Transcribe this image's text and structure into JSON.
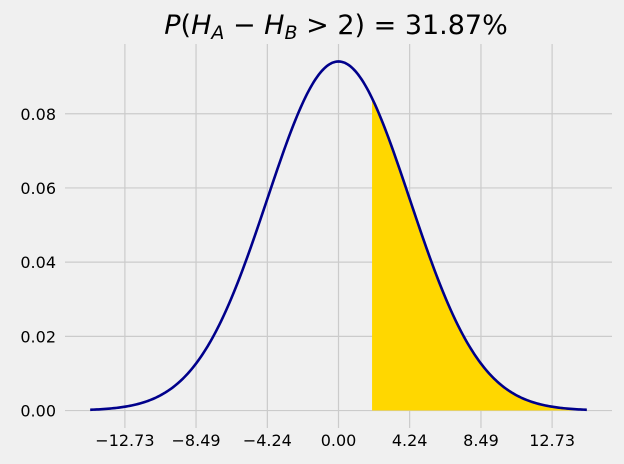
{
  "chart_data": {
    "type": "area",
    "title": {
      "P": "P",
      "open": "(",
      "H1": "H",
      "sub1": "A",
      "minus": " − ",
      "H2": "H",
      "sub2": "B",
      "rest": " > 2) = 31.87%"
    },
    "distribution": {
      "kind": "normal",
      "mean": 0,
      "sd": 4.24
    },
    "shade_from": 2,
    "shade_to": 14.8,
    "x_range": [
      -14.8,
      14.8
    ],
    "xlim": [
      -16.3,
      16.3
    ],
    "ylim": [
      -0.0047,
      0.0988
    ],
    "xticks": [
      -12.73,
      -8.49,
      -4.24,
      0.0,
      4.24,
      8.49,
      12.73
    ],
    "xtick_labels": [
      "−12.73",
      "−8.49",
      "−4.24",
      "0.00",
      "4.24",
      "8.49",
      "12.73"
    ],
    "yticks": [
      0.0,
      0.02,
      0.04,
      0.06,
      0.08
    ],
    "ytick_labels": [
      "0.00",
      "0.02",
      "0.04",
      "0.06",
      "0.08"
    ],
    "grid": true,
    "xlabel": "",
    "ylabel": "",
    "colors": {
      "line": "#00008b",
      "fill": "#ffd700",
      "grid": "#cbcbcb",
      "background": "#f0f0f0"
    }
  }
}
